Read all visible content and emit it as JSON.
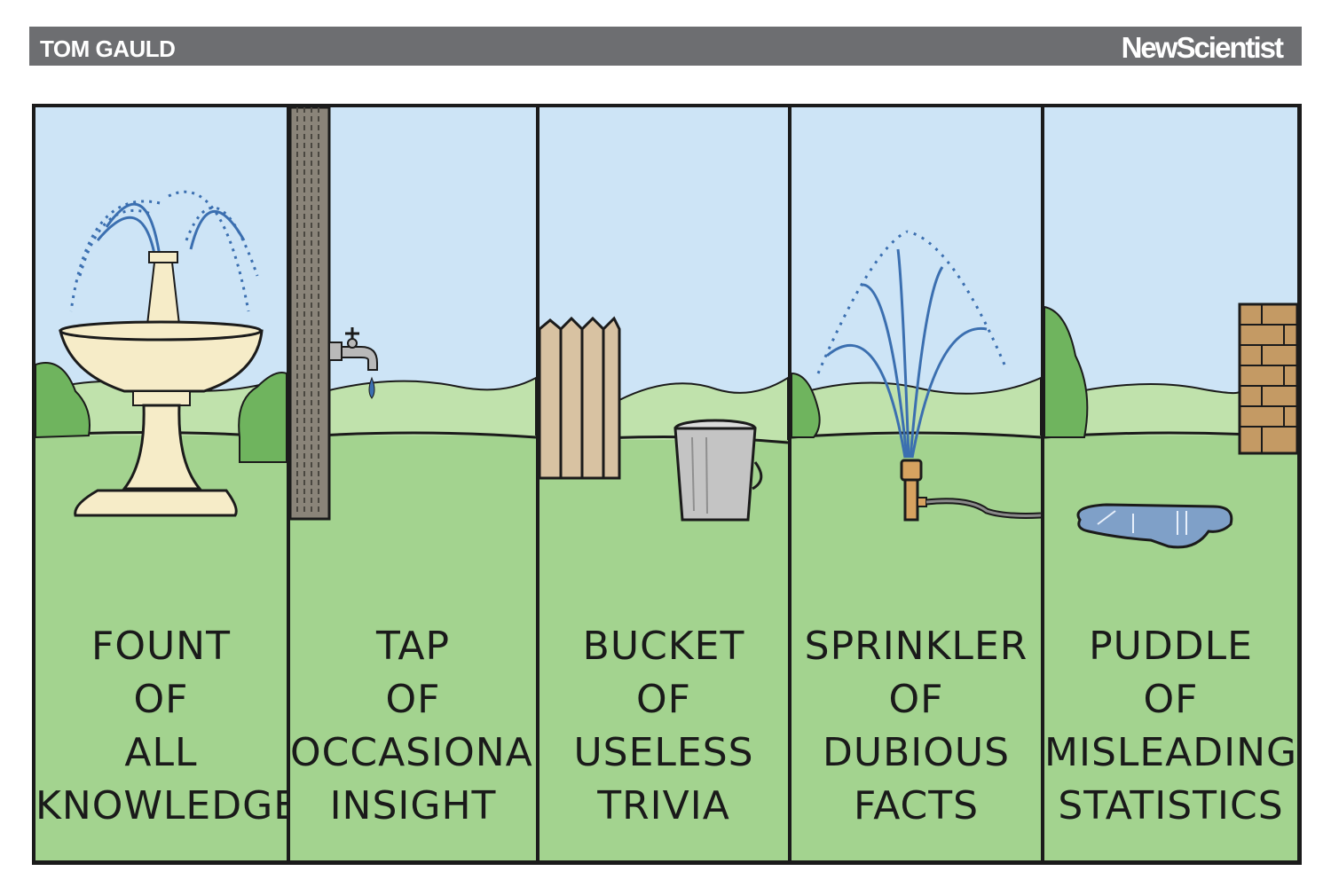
{
  "banner": {
    "author": "TOM GAULD",
    "publication": "NewScientist"
  },
  "colors": {
    "sky": "#cde4f6",
    "grass": "#a3d38f",
    "far_grass": "#c0e2ac",
    "ink": "#1b1b1b",
    "banner": "#6d6e71"
  },
  "panels": [
    {
      "icon": "fountain-icon",
      "lines": [
        "FOUNT",
        "OF",
        "ALL",
        "KNOWLEDGE"
      ]
    },
    {
      "icon": "tap-icon",
      "lines": [
        "TAP",
        "OF",
        "OCCASIONAL",
        "INSIGHT"
      ]
    },
    {
      "icon": "bucket-icon",
      "lines": [
        "BUCKET",
        "OF",
        "USELESS",
        "TRIVIA"
      ]
    },
    {
      "icon": "sprinkler-icon",
      "lines": [
        "SPRINKLER",
        "OF",
        "DUBIOUS",
        "FACTS"
      ]
    },
    {
      "icon": "puddle-icon",
      "lines": [
        "PUDDLE",
        "OF",
        "MISLEADING",
        "STATISTICS"
      ]
    }
  ]
}
